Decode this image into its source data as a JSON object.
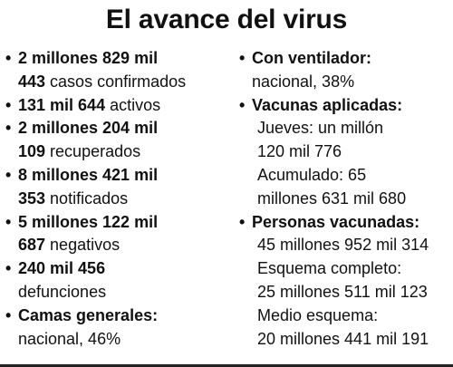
{
  "title": "El avance del virus",
  "left": {
    "items": [
      {
        "bold1": "2 millones 829 mil",
        "bold2": "443",
        "rest": " casos confirmados"
      },
      {
        "bold1": "131 mil 644",
        "rest": " activos"
      },
      {
        "bold1": "2 millones 204 mil",
        "bold2": "109",
        "rest": " recuperados"
      },
      {
        "bold1": "8 millones 421 mil",
        "bold2": "353",
        "rest": " notificados"
      },
      {
        "bold1": "5 millones 122 mil",
        "bold2": "687",
        "rest": " negativos"
      },
      {
        "bold1": "240 mil 456",
        "line2": "defunciones"
      },
      {
        "bold1": "Camas generales:",
        "line2": "nacional, 46%"
      }
    ]
  },
  "right": {
    "ventilador_label": "Con ventilador:",
    "ventilador_value": "nacional, 38%",
    "vacunas_label": "Vacunas aplicadas:",
    "vacunas_lines": [
      "Jueves: un millón",
      "120 mil 776",
      "Acumulado: 65",
      "millones 631 mil 680"
    ],
    "personas_label": "Personas vacunadas:",
    "personas_lines": [
      "45 millones 952 mil 314",
      "Esquema completo:",
      "25 millones 511 mil 123",
      "Medio esquema:",
      "20 millones 441 mil 191"
    ]
  },
  "bullet_char": "•"
}
